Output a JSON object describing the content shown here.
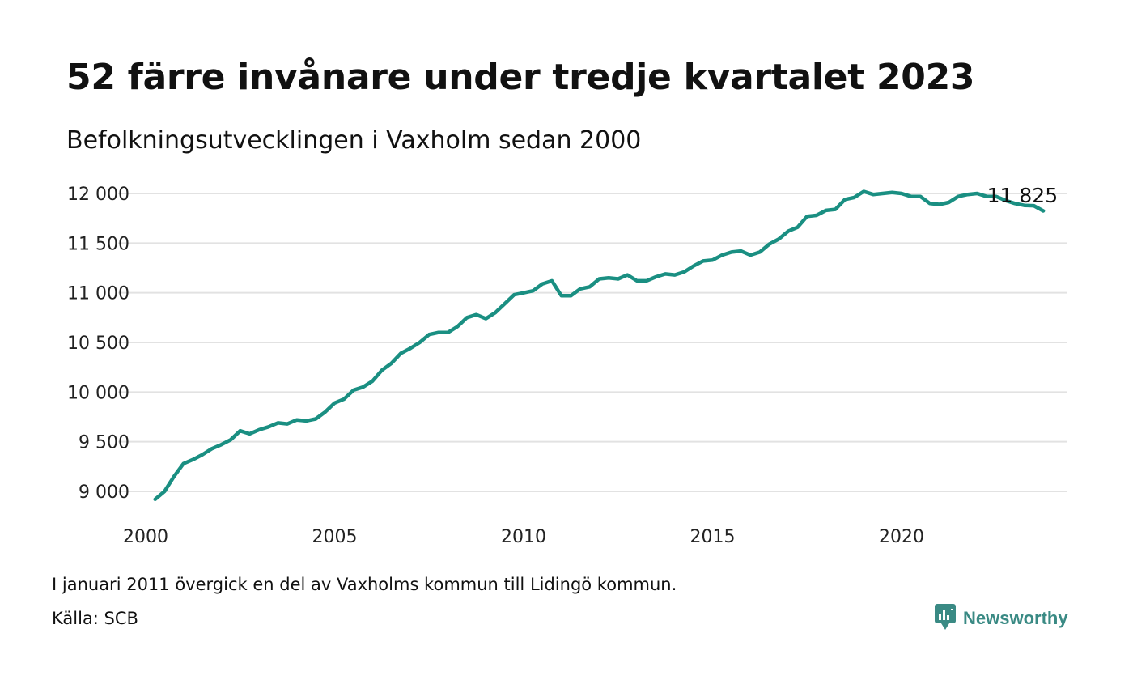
{
  "header": {
    "title": "52 färre invånare under tredje kvartalet 2023",
    "subtitle": "Befolkningsutvecklingen i Vaxholm sedan 2000"
  },
  "footer": {
    "note": "I januari 2011 övergick en del av Vaxholms kommun till Lidingö kommun.",
    "source": "Källa: SCB",
    "brand": "Newsworthy"
  },
  "colors": {
    "line": "#1a8f82",
    "grid": "#e2e2e2",
    "brand": "#3a8a84"
  },
  "chart_data": {
    "type": "line",
    "title": "52 färre invånare under tredje kvartalet 2023",
    "subtitle": "Befolkningsutvecklingen i Vaxholm sedan 2000",
    "xlabel": "",
    "ylabel": "",
    "xlim": [
      2000,
      2024
    ],
    "ylim": [
      8900,
      12050
    ],
    "grid": true,
    "y_ticks": [
      {
        "value": 9000,
        "label": "9 000"
      },
      {
        "value": 9500,
        "label": "9 500"
      },
      {
        "value": 10000,
        "label": "10 000"
      },
      {
        "value": 10500,
        "label": "10 500"
      },
      {
        "value": 11000,
        "label": "11 000"
      },
      {
        "value": 11500,
        "label": "11 500"
      },
      {
        "value": 12000,
        "label": "12 000"
      }
    ],
    "x_ticks": [
      {
        "value": 2000,
        "label": "2000"
      },
      {
        "value": 2005,
        "label": "2005"
      },
      {
        "value": 2010,
        "label": "2010"
      },
      {
        "value": 2015,
        "label": "2015"
      },
      {
        "value": 2020,
        "label": "2020"
      }
    ],
    "end_label": "11 825",
    "series": [
      {
        "x": [
          2000.25,
          2000.5,
          2000.75,
          2001.0,
          2001.25,
          2001.5,
          2001.75,
          2002.0,
          2002.25,
          2002.5,
          2002.75,
          2003.0,
          2003.25,
          2003.5,
          2003.75,
          2004.0,
          2004.25,
          2004.5,
          2004.75,
          2005.0,
          2005.25,
          2005.5,
          2005.75,
          2006.0,
          2006.25,
          2006.5,
          2006.75,
          2007.0,
          2007.25,
          2007.5,
          2007.75,
          2008.0,
          2008.25,
          2008.5,
          2008.75,
          2009.0,
          2009.25,
          2009.5,
          2009.75,
          2010.0,
          2010.25,
          2010.5,
          2010.75,
          2011.0,
          2011.25,
          2011.5,
          2011.75,
          2012.0,
          2012.25,
          2012.5,
          2012.75,
          2013.0,
          2013.25,
          2013.5,
          2013.75,
          2014.0,
          2014.25,
          2014.5,
          2014.75,
          2015.0,
          2015.25,
          2015.5,
          2015.75,
          2016.0,
          2016.25,
          2016.5,
          2016.75,
          2017.0,
          2017.25,
          2017.5,
          2017.75,
          2018.0,
          2018.25,
          2018.5,
          2018.75,
          2019.0,
          2019.25,
          2019.5,
          2019.75,
          2020.0,
          2020.25,
          2020.5,
          2020.75,
          2021.0,
          2021.25,
          2021.5,
          2021.75,
          2022.0,
          2022.25,
          2022.5,
          2022.75,
          2023.0,
          2023.25,
          2023.5,
          2023.75
        ],
        "values": [
          8920,
          9000,
          9150,
          9280,
          9320,
          9370,
          9430,
          9470,
          9520,
          9610,
          9580,
          9620,
          9650,
          9690,
          9680,
          9720,
          9710,
          9730,
          9800,
          9890,
          9930,
          10020,
          10050,
          10110,
          10220,
          10290,
          10390,
          10440,
          10500,
          10580,
          10600,
          10600,
          10660,
          10750,
          10780,
          10740,
          10800,
          10890,
          10980,
          11000,
          11020,
          11090,
          11120,
          10970,
          10970,
          11040,
          11060,
          11140,
          11150,
          11140,
          11180,
          11120,
          11120,
          11160,
          11190,
          11180,
          11210,
          11270,
          11320,
          11330,
          11380,
          11410,
          11420,
          11380,
          11410,
          11490,
          11540,
          11620,
          11660,
          11770,
          11780,
          11830,
          11840,
          11940,
          11960,
          12020,
          11990,
          12000,
          12010,
          12000,
          11970,
          11970,
          11900,
          11890,
          11910,
          11970,
          11990,
          12000,
          11970,
          11970,
          11930,
          11900,
          11880,
          11877,
          11825
        ]
      }
    ]
  }
}
